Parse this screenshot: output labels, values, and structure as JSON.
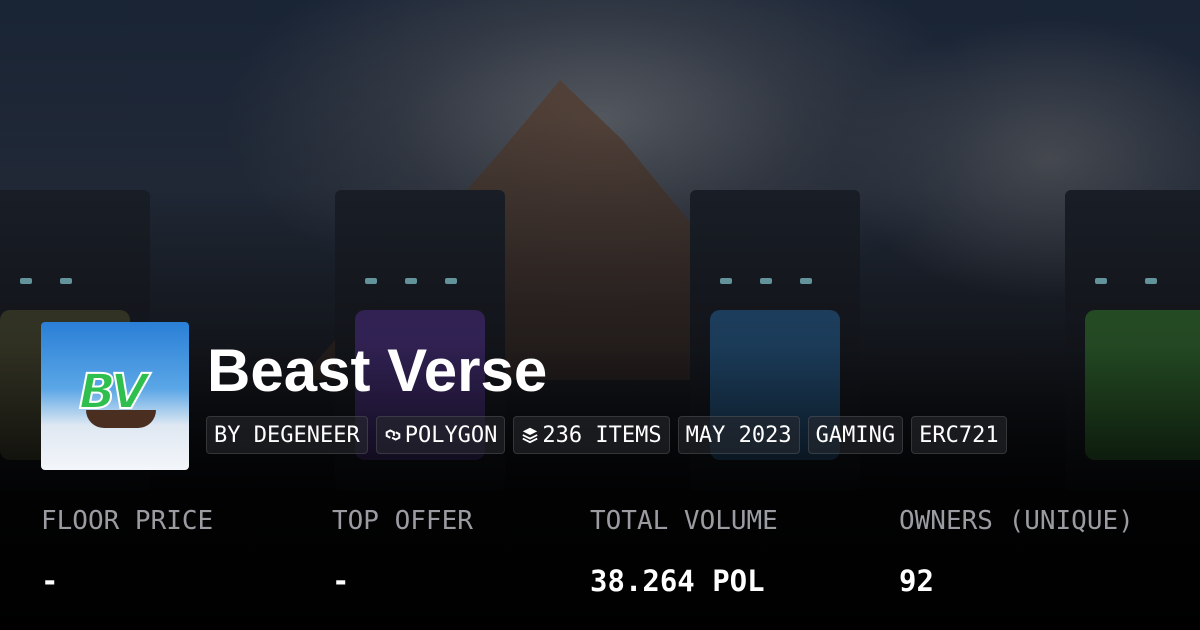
{
  "collection": {
    "title": "Beast Verse",
    "logo_text": "BV"
  },
  "tags": [
    {
      "label": "BY DEGENEER",
      "icon": null
    },
    {
      "label": "POLYGON",
      "icon": "polygon-icon"
    },
    {
      "label": "236 ITEMS",
      "icon": "layers-icon"
    },
    {
      "label": "MAY 2023",
      "icon": null
    },
    {
      "label": "GAMING",
      "icon": null
    },
    {
      "label": "ERC721",
      "icon": null
    }
  ],
  "stats": [
    {
      "label": "FLOOR PRICE",
      "value": "-"
    },
    {
      "label": "TOP OFFER",
      "value": "-"
    },
    {
      "label": "TOTAL VOLUME",
      "value": "38.264 POL"
    },
    {
      "label": "OWNERS (UNIQUE)",
      "value": "92"
    }
  ]
}
